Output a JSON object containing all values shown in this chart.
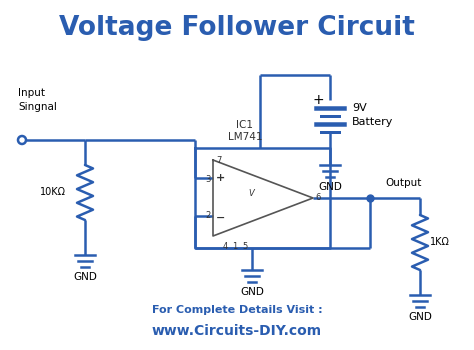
{
  "title": "Voltage Follower Circuit",
  "title_color": "#2a5db0",
  "title_fontsize": 19,
  "bg_color": "#ffffff",
  "wire_color": "#2a5db0",
  "wire_lw": 1.8,
  "footer_text1": "For Complete Details Visit :",
  "footer_text2": "www.Circuits-DIY.com",
  "footer_color1": "#2a5db0",
  "footer_color2": "#2a5db0",
  "footer_fontsize1": 8.0,
  "footer_fontsize2": 10.0
}
